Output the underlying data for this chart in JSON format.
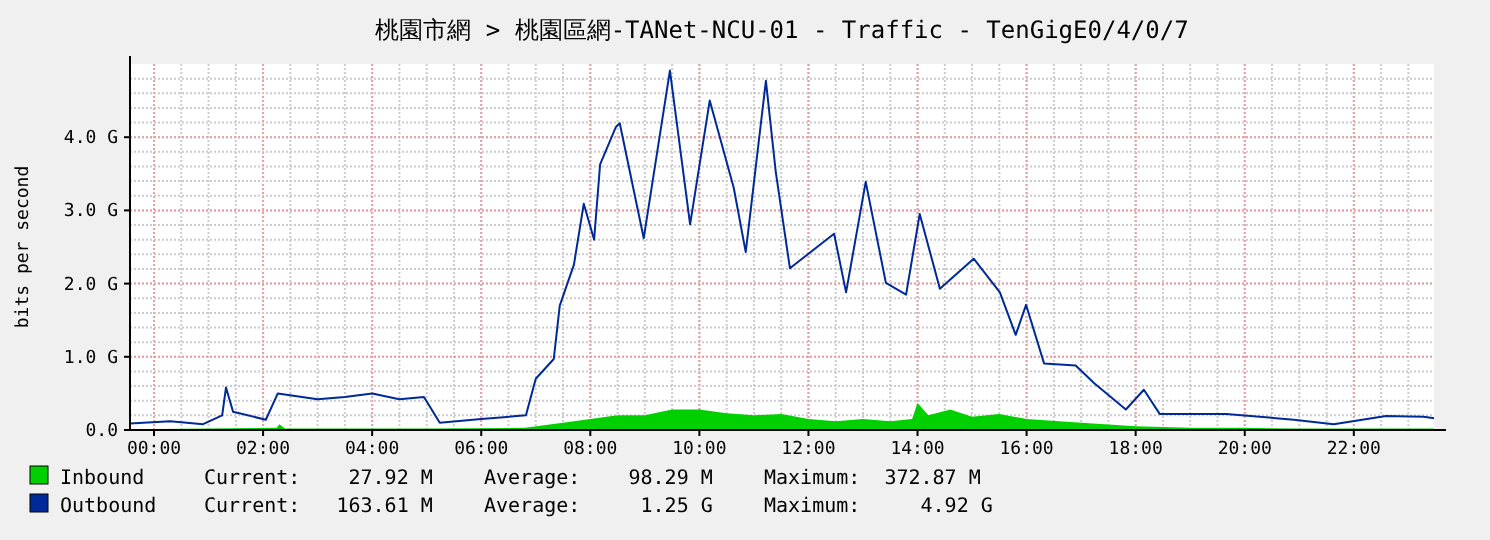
{
  "chart_data": {
    "type": "line",
    "title": "桃園市網 > 桃園區網-TANet-NCU-01 - Traffic - TenGigE0/4/0/7",
    "ylabel": "bits per second",
    "xlim": [
      -0.44,
      23.47
    ],
    "xticks": [
      {
        "value": 0,
        "label": "00:00"
      },
      {
        "value": 2,
        "label": "02:00"
      },
      {
        "value": 4,
        "label": "04:00"
      },
      {
        "value": 6,
        "label": "06:00"
      },
      {
        "value": 8,
        "label": "08:00"
      },
      {
        "value": 10,
        "label": "10:00"
      },
      {
        "value": 12,
        "label": "12:00"
      },
      {
        "value": 14,
        "label": "14:00"
      },
      {
        "value": 16,
        "label": "16:00"
      },
      {
        "value": 18,
        "label": "18:00"
      },
      {
        "value": 20,
        "label": "20:00"
      },
      {
        "value": 22,
        "label": "22:00"
      }
    ],
    "ylim": [
      0,
      5.0
    ],
    "yticks": [
      {
        "value": 0,
        "label": "0.0"
      },
      {
        "value": 1,
        "label": "1.0 G"
      },
      {
        "value": 2,
        "label": "2.0 G"
      },
      {
        "value": 3,
        "label": "3.0 G"
      },
      {
        "value": 4,
        "label": "4.0 G"
      }
    ],
    "grid": true,
    "legend": "bottom",
    "series": [
      {
        "name": "Inbound",
        "type": "area",
        "color": "#00cf00",
        "x": [
          -0.44,
          1.0,
          2.25,
          2.3,
          2.4,
          5.0,
          6.8,
          7.5,
          8.0,
          8.5,
          9.0,
          9.5,
          10.0,
          10.5,
          11.0,
          11.5,
          12.0,
          12.5,
          13.0,
          13.5,
          13.9,
          14.0,
          14.2,
          14.6,
          15.0,
          15.5,
          16.0,
          17.0,
          18.0,
          19.0,
          20.0,
          21.0,
          23.47
        ],
        "values": [
          0.01,
          0.02,
          0.03,
          0.08,
          0.02,
          0.02,
          0.03,
          0.1,
          0.15,
          0.2,
          0.2,
          0.28,
          0.28,
          0.23,
          0.2,
          0.22,
          0.15,
          0.12,
          0.15,
          0.12,
          0.15,
          0.37,
          0.2,
          0.28,
          0.18,
          0.22,
          0.15,
          0.1,
          0.05,
          0.03,
          0.03,
          0.02,
          0.02
        ]
      },
      {
        "name": "Outbound",
        "color": "#002a97",
        "x": [
          -0.44,
          0.3,
          0.9,
          1.25,
          1.32,
          1.45,
          2.05,
          2.27,
          3.0,
          3.5,
          4.0,
          4.5,
          4.95,
          5.24,
          6.0,
          6.82,
          7.0,
          7.33,
          7.44,
          7.7,
          7.88,
          8.07,
          8.18,
          8.47,
          8.54,
          8.98,
          9.46,
          9.83,
          10.19,
          10.63,
          10.85,
          11.22,
          11.4,
          11.66,
          12.47,
          12.69,
          13.05,
          13.42,
          13.79,
          14.04,
          14.41,
          15.03,
          15.51,
          15.8,
          15.99,
          16.32,
          16.9,
          17.24,
          17.82,
          18.15,
          18.44,
          19.66,
          20.9,
          21.63,
          22.59,
          23.28,
          23.47
        ],
        "values": [
          0.09,
          0.12,
          0.08,
          0.2,
          0.58,
          0.25,
          0.14,
          0.5,
          0.42,
          0.45,
          0.5,
          0.42,
          0.45,
          0.1,
          0.15,
          0.2,
          0.7,
          0.97,
          1.7,
          2.26,
          3.09,
          2.6,
          3.63,
          4.14,
          4.19,
          2.62,
          4.91,
          2.81,
          4.5,
          3.31,
          2.43,
          4.77,
          3.53,
          2.21,
          2.68,
          1.88,
          3.39,
          2.01,
          1.85,
          2.95,
          1.93,
          2.34,
          1.88,
          1.3,
          1.71,
          0.91,
          0.88,
          0.64,
          0.28,
          0.55,
          0.22,
          0.22,
          0.14,
          0.08,
          0.19,
          0.18,
          0.16
        ]
      }
    ],
    "annotations": [
      "Current:    27.92 M",
      "Average:    98.29 M",
      "Maximum:  372.87 M",
      "Current:   163.61 M",
      "Average:     1.25 G",
      "Maximum:     4.92 G"
    ]
  }
}
